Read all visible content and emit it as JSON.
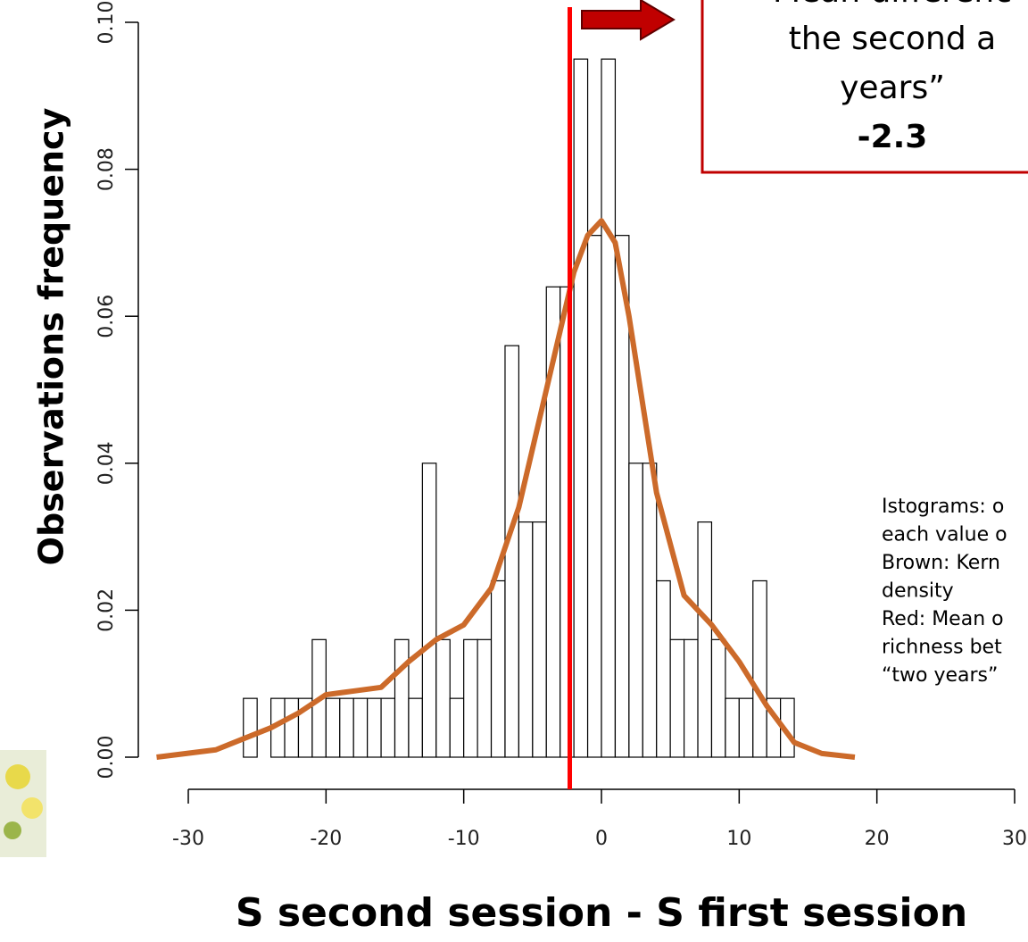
{
  "chart_data": {
    "type": "histogram",
    "x_label": "S second session - S first session",
    "y_label": "Observations frequency",
    "bins": [
      -26,
      -25,
      -24,
      -23,
      -22,
      -21,
      -20,
      -19,
      -18,
      -17,
      -16,
      -15,
      -14,
      -13,
      -12,
      -11,
      -10,
      -9,
      -8,
      -7,
      -6,
      -5,
      -4,
      -3,
      -2,
      -1,
      0,
      1,
      2,
      3,
      4,
      5,
      6,
      7,
      8,
      9,
      10,
      11,
      12,
      13,
      14
    ],
    "values": [
      0.008,
      0,
      0.008,
      0.008,
      0.008,
      0.016,
      0.008,
      0.008,
      0.008,
      0.008,
      0.008,
      0.016,
      0.008,
      0.04,
      0.016,
      0.008,
      0.016,
      0.016,
      0.024,
      0.056,
      0.032,
      0.032,
      0.064,
      0.064,
      0.095,
      0.071,
      0.095,
      0.071,
      0.04,
      0.04,
      0.024,
      0.016,
      0.016,
      0.032,
      0.016,
      0.008,
      0.008,
      0.024,
      0.008,
      0.008
    ],
    "color": "#ffffff",
    "edge_color": "#000000",
    "density": {
      "color": "#cc6a2a",
      "x": [
        -32.3,
        -28,
        -24,
        -22,
        -20,
        -18,
        -16,
        -14,
        -12,
        -10,
        -8,
        -6,
        -4,
        -2,
        -1,
        0,
        1,
        2,
        4,
        6,
        8,
        10,
        12,
        14,
        16,
        18.4
      ],
      "values": [
        0,
        0.001,
        0.004,
        0.006,
        0.0085,
        0.009,
        0.0095,
        0.013,
        0.016,
        0.018,
        0.023,
        0.034,
        0.05,
        0.066,
        0.071,
        0.073,
        0.07,
        0.06,
        0.036,
        0.022,
        0.018,
        0.013,
        0.007,
        0.002,
        0.0005,
        0
      ]
    },
    "mean_line": {
      "value": -2.3,
      "color": "#ff0000"
    },
    "xlim": [
      -30,
      30
    ],
    "ylim": [
      0,
      0.1
    ],
    "xticks": [
      -30,
      -20,
      -10,
      0,
      10,
      20,
      30
    ],
    "yticks": [
      {
        "value": 0,
        "label": "0.00"
      },
      {
        "value": 0.02,
        "label": "0.02"
      },
      {
        "value": 0.04,
        "label": "0.04"
      },
      {
        "value": 0.06,
        "label": "0.06"
      },
      {
        "value": 0.08,
        "label": "0.08"
      },
      {
        "value": 0.1,
        "label": "0.10"
      }
    ],
    "box_lines": [
      "Mean differenc",
      "the second a",
      "years”",
      "-2.3"
    ],
    "legend_lines": [
      "Istograms: o",
      "each value o",
      "Brown: Kern",
      "density",
      "Red: Mean o",
      "richness bet",
      "“two years”"
    ]
  }
}
